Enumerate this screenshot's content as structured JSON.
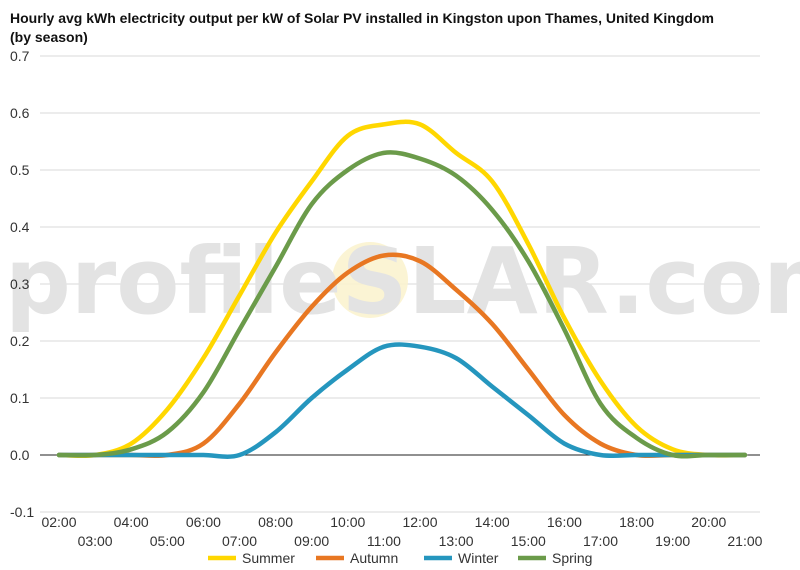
{
  "chart_data": {
    "type": "line",
    "title": "Hourly avg kWh electricity output per kW of Solar PV installed in Kingston upon Thames, United Kingdom (by season)",
    "xlabel": "",
    "ylabel": "",
    "ylim": [
      -0.1,
      0.7
    ],
    "yticks": [
      "0.7",
      "0.6",
      "0.5",
      "0.4",
      "0.3",
      "0.2",
      "0.1",
      "0.0",
      "-0.1"
    ],
    "x": [
      "02:00",
      "03:00",
      "04:00",
      "05:00",
      "06:00",
      "07:00",
      "08:00",
      "09:00",
      "10:00",
      "11:00",
      "12:00",
      "13:00",
      "14:00",
      "15:00",
      "16:00",
      "17:00",
      "18:00",
      "19:00",
      "20:00",
      "21:00"
    ],
    "grid": true,
    "legend": "bottom",
    "series": [
      {
        "name": "Summer",
        "color": "#FFD700",
        "values": [
          0.0,
          0.0,
          0.02,
          0.08,
          0.17,
          0.28,
          0.39,
          0.48,
          0.56,
          0.58,
          0.58,
          0.53,
          0.48,
          0.37,
          0.24,
          0.13,
          0.05,
          0.01,
          0.0,
          0.0
        ]
      },
      {
        "name": "Autumn",
        "color": "#E87722",
        "values": [
          0.0,
          0.0,
          0.0,
          0.0,
          0.02,
          0.09,
          0.18,
          0.26,
          0.32,
          0.35,
          0.34,
          0.29,
          0.23,
          0.15,
          0.07,
          0.02,
          0.0,
          0.0,
          0.0,
          0.0
        ]
      },
      {
        "name": "Winter",
        "color": "#2596BE",
        "values": [
          0.0,
          0.0,
          0.0,
          0.0,
          0.0,
          0.0,
          0.04,
          0.1,
          0.15,
          0.19,
          0.19,
          0.17,
          0.12,
          0.07,
          0.02,
          0.0,
          0.0,
          0.0,
          0.0,
          0.0
        ]
      },
      {
        "name": "Spring",
        "color": "#6B9B4A",
        "values": [
          0.0,
          0.0,
          0.01,
          0.04,
          0.11,
          0.22,
          0.33,
          0.44,
          0.5,
          0.53,
          0.52,
          0.49,
          0.43,
          0.34,
          0.22,
          0.09,
          0.03,
          0.0,
          0.0,
          0.0
        ]
      }
    ]
  },
  "watermark": {
    "text_left": "profileS",
    "text_right": "LAR.com"
  }
}
